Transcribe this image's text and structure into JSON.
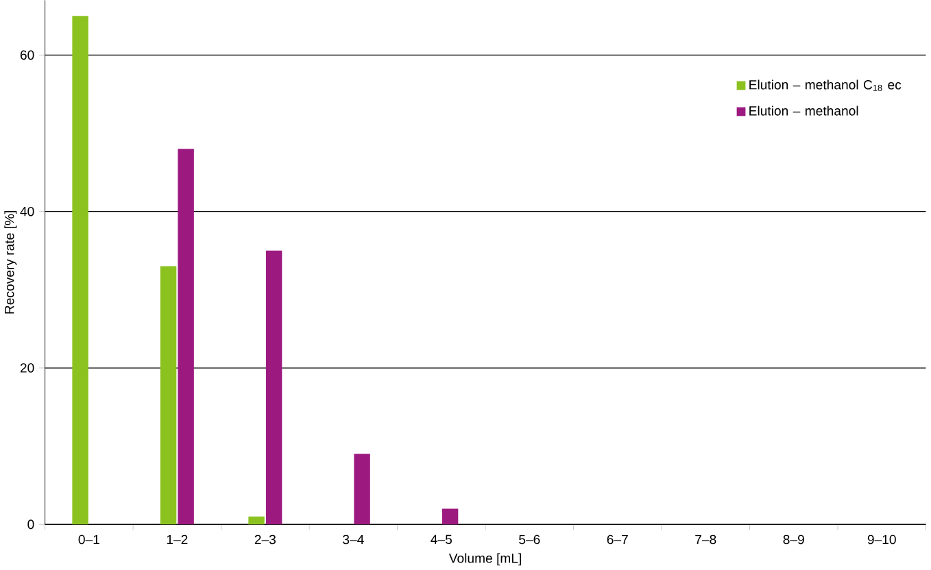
{
  "chart_data": {
    "type": "bar",
    "xlabel": "Volume [mL]",
    "ylabel": "Recovery rate [%]",
    "categories": [
      "0–1",
      "1–2",
      "2–3",
      "3–4",
      "4–5",
      "5–6",
      "6–7",
      "7–8",
      "8–9",
      "9–10"
    ],
    "series": [
      {
        "name": "Elution – methanol C$_{18}$ ec",
        "color": "#8cc21f",
        "values": [
          65,
          33,
          1,
          0,
          0,
          0,
          0,
          0,
          0,
          0
        ]
      },
      {
        "name": "Elution – methanol",
        "color": "#9c1a80",
        "values": [
          0,
          48,
          35,
          9,
          2,
          0,
          0,
          0,
          0,
          0
        ]
      }
    ],
    "ylim": [
      0,
      67
    ],
    "yticks": [
      0,
      20,
      40,
      60
    ],
    "grid": "y",
    "legend": "top right"
  }
}
